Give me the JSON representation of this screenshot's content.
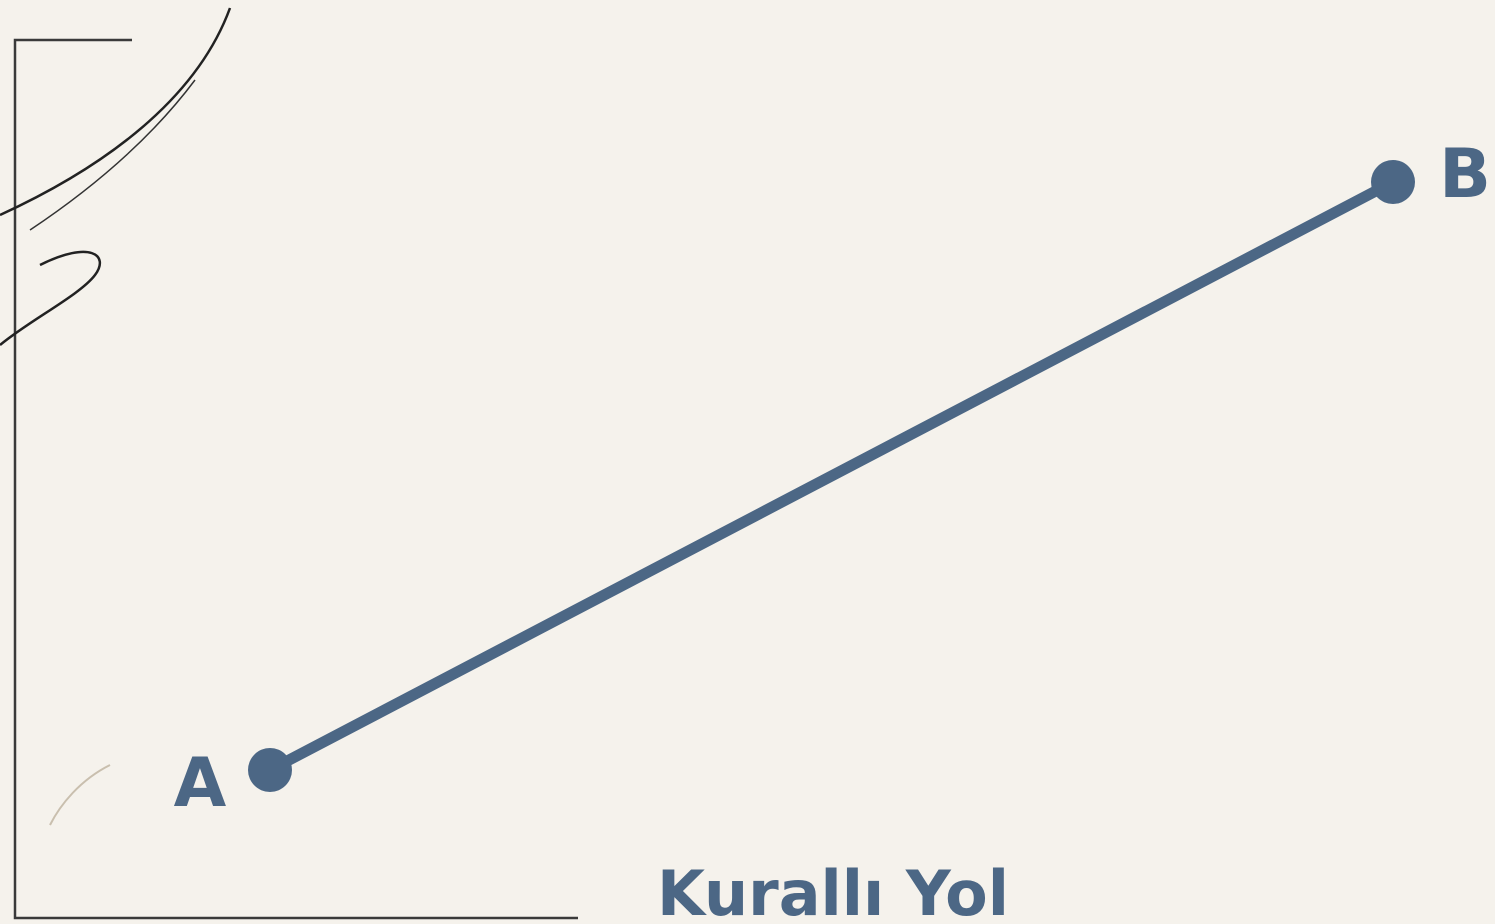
{
  "nodes": [
    {
      "label": "A"
    },
    {
      "label": "B"
    }
  ],
  "caption": "Kurallı Yol"
}
